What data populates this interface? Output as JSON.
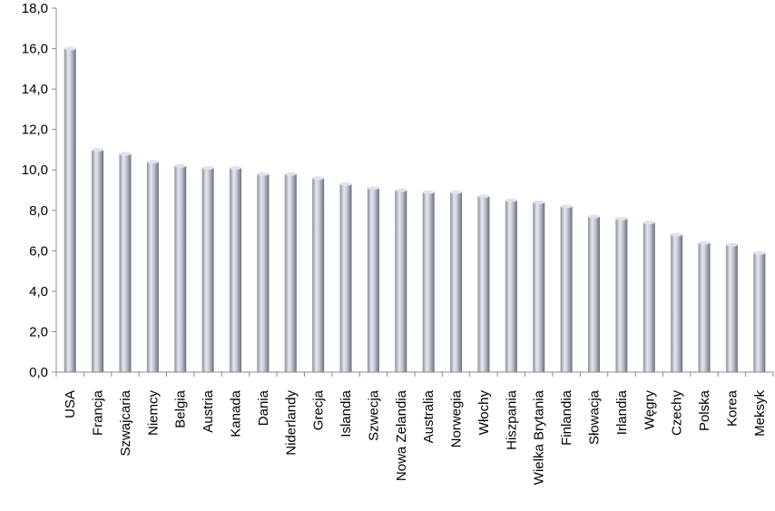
{
  "chart_data": {
    "type": "bar",
    "categories": [
      "USA",
      "Francja",
      "Szwajcaria",
      "Niemcy",
      "Belgia",
      "Austria",
      "Kanada",
      "Dania",
      "Niderlandy",
      "Grecja",
      "Islandia",
      "Szwecja",
      "Nowa Zelandia",
      "Australia",
      "Norwegia",
      "Włochy",
      "Hiszpania",
      "Wielka Brytania",
      "Finlandia",
      "Słowacja",
      "Irlandia",
      "Węgry",
      "Czechy",
      "Polska",
      "Korea",
      "Meksyk"
    ],
    "values": [
      16.0,
      11.0,
      10.8,
      10.4,
      10.2,
      10.1,
      10.1,
      9.8,
      9.8,
      9.6,
      9.3,
      9.1,
      9.0,
      8.9,
      8.9,
      8.7,
      8.5,
      8.4,
      8.2,
      7.7,
      7.6,
      7.4,
      6.8,
      6.4,
      6.3,
      5.9
    ],
    "ylim": [
      0,
      18
    ],
    "yticks": [
      "0,0",
      "2,0",
      "4,0",
      "6,0",
      "8,0",
      "10,0",
      "12,0",
      "14,0",
      "16,0",
      "18,0"
    ],
    "grid": false,
    "colors": {
      "bar_light": "#dfe3ee",
      "bar_dark": "#6f7484",
      "axis": "#8c8c8c"
    }
  }
}
